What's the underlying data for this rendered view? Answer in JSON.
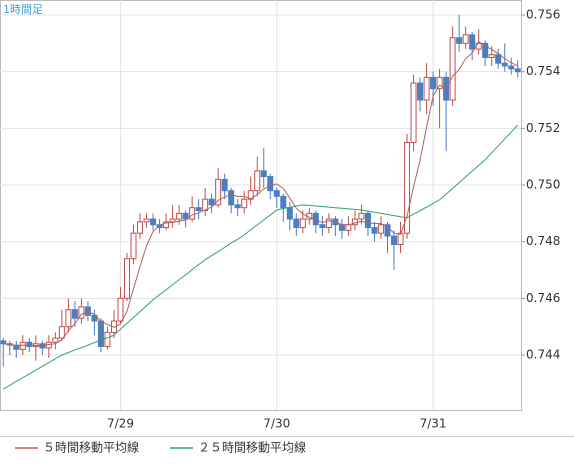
{
  "chart_data": {
    "type": "candlestick",
    "title": "1時間足",
    "categories": [
      null,
      null,
      null,
      null,
      null,
      null,
      null,
      null,
      null,
      null,
      null,
      null,
      null,
      null,
      null,
      null,
      null,
      null,
      "7/29",
      null,
      null,
      null,
      null,
      null,
      null,
      null,
      null,
      null,
      null,
      null,
      null,
      null,
      null,
      null,
      null,
      null,
      null,
      null,
      null,
      null,
      null,
      null,
      "7/30",
      null,
      null,
      null,
      null,
      null,
      null,
      null,
      null,
      null,
      null,
      null,
      null,
      null,
      null,
      null,
      null,
      null,
      null,
      null,
      null,
      null,
      null,
      null,
      "7/31",
      null,
      null,
      null,
      null,
      null,
      null,
      null,
      null,
      null,
      null,
      null,
      null,
      null
    ],
    "open": [
      0.7445,
      0.7444,
      0.74435,
      0.7442,
      0.74445,
      0.7443,
      0.7444,
      0.74425,
      0.74445,
      0.7446,
      0.745,
      0.7456,
      0.7453,
      0.7457,
      0.7454,
      0.7452,
      0.7443,
      0.7448,
      0.7452,
      0.746,
      0.7474,
      0.7483,
      0.7487,
      0.7488,
      0.7486,
      0.7485,
      0.7487,
      0.7488,
      0.749,
      0.7488,
      0.7492,
      0.7491,
      0.7495,
      0.7493,
      0.7502,
      0.7498,
      0.7493,
      0.7492,
      0.7495,
      0.7498,
      0.7505,
      0.7503,
      0.7498,
      0.7496,
      0.7492,
      0.7488,
      0.7485,
      0.7488,
      0.749,
      0.7486,
      0.7485,
      0.7488,
      0.7486,
      0.7484,
      0.7486,
      0.7488,
      0.749,
      0.7485,
      0.7483,
      0.7486,
      0.7482,
      0.7479,
      0.7483,
      0.7515,
      0.7536,
      0.753,
      0.7538,
      0.7534,
      0.7538,
      0.753,
      0.7552,
      0.755,
      0.7553,
      0.7548,
      0.755,
      0.7545,
      0.7546,
      0.7543,
      0.7542,
      0.7541
    ],
    "high": [
      0.7446,
      0.7445,
      0.7445,
      0.7447,
      0.7446,
      0.7447,
      0.7445,
      0.7447,
      0.7448,
      0.7456,
      0.746,
      0.7459,
      0.746,
      0.7459,
      0.7456,
      0.7453,
      0.745,
      0.7456,
      0.7464,
      0.7476,
      0.7486,
      0.749,
      0.749,
      0.749,
      0.7488,
      0.749,
      0.7493,
      0.7493,
      0.7491,
      0.7496,
      0.7495,
      0.7499,
      0.7497,
      0.7506,
      0.7504,
      0.7499,
      0.7495,
      0.7498,
      0.7503,
      0.751,
      0.7513,
      0.7504,
      0.7499,
      0.7497,
      0.7494,
      0.749,
      0.7491,
      0.7492,
      0.7491,
      0.7489,
      0.749,
      0.7489,
      0.7488,
      0.7489,
      0.7491,
      0.7493,
      0.7491,
      0.7487,
      0.7489,
      0.7487,
      0.7484,
      0.7487,
      0.7518,
      0.7539,
      0.7538,
      0.7543,
      0.754,
      0.7541,
      0.754,
      0.7556,
      0.756,
      0.7556,
      0.7554,
      0.7555,
      0.7551,
      0.7549,
      0.7548,
      0.755,
      0.7545,
      0.7544
    ],
    "low": [
      0.7436,
      0.744,
      0.7439,
      0.744,
      0.7441,
      0.7438,
      0.744,
      0.7439,
      0.7442,
      0.7445,
      0.7448,
      0.745,
      0.7451,
      0.7452,
      0.7447,
      0.7441,
      0.7442,
      0.7446,
      0.7451,
      0.7459,
      0.7472,
      0.7481,
      0.7485,
      0.7484,
      0.7483,
      0.7484,
      0.7485,
      0.7486,
      0.7485,
      0.7487,
      0.7488,
      0.7489,
      0.749,
      0.7492,
      0.7495,
      0.749,
      0.7489,
      0.749,
      0.7493,
      0.7496,
      0.7499,
      0.7495,
      0.7492,
      0.7487,
      0.7484,
      0.7482,
      0.7483,
      0.7486,
      0.7483,
      0.7482,
      0.7483,
      0.7482,
      0.7481,
      0.7482,
      0.7484,
      0.7486,
      0.7482,
      0.748,
      0.7481,
      0.7476,
      0.747,
      0.7476,
      0.7481,
      0.7512,
      0.7526,
      0.7525,
      0.7528,
      0.752,
      0.7512,
      0.7528,
      0.7547,
      0.7548,
      0.7544,
      0.7546,
      0.7542,
      0.7542,
      0.7541,
      0.754,
      0.7539,
      0.7538
    ],
    "close": [
      0.7444,
      0.74435,
      0.7442,
      0.74445,
      0.7443,
      0.7444,
      0.74425,
      0.74445,
      0.7446,
      0.745,
      0.7456,
      0.7453,
      0.7457,
      0.7454,
      0.7452,
      0.7443,
      0.7448,
      0.7452,
      0.746,
      0.7474,
      0.7483,
      0.7487,
      0.7488,
      0.7486,
      0.7485,
      0.7487,
      0.7488,
      0.749,
      0.7488,
      0.7492,
      0.7491,
      0.7495,
      0.7493,
      0.7502,
      0.7498,
      0.7493,
      0.7492,
      0.7495,
      0.7498,
      0.7505,
      0.7503,
      0.7498,
      0.7496,
      0.7492,
      0.7488,
      0.7485,
      0.7488,
      0.749,
      0.7486,
      0.7485,
      0.7488,
      0.7486,
      0.7484,
      0.7486,
      0.7488,
      0.749,
      0.7485,
      0.7483,
      0.7486,
      0.7482,
      0.7479,
      0.7483,
      0.7515,
      0.7536,
      0.753,
      0.7538,
      0.7534,
      0.7538,
      0.753,
      0.7552,
      0.755,
      0.7553,
      0.7548,
      0.755,
      0.7545,
      0.7546,
      0.7543,
      0.7542,
      0.7541,
      0.754
    ],
    "up_color": "#c0504d",
    "down_color": "#4a7fc1",
    "series": [
      {
        "name": "５時間移動平均線",
        "color": "#b5625e",
        "values": [
          0.7444,
          0.74438,
          0.74432,
          0.74435,
          0.74434,
          0.74434,
          0.74432,
          0.74437,
          0.7444,
          0.74454,
          0.74486,
          0.7451,
          0.74544,
          0.74552,
          0.74544,
          0.74518,
          0.74508,
          0.74498,
          0.7451,
          0.74554,
          0.74634,
          0.74712,
          0.74786,
          0.74836,
          0.74858,
          0.74866,
          0.74868,
          0.74872,
          0.74876,
          0.74894,
          0.74902,
          0.74912,
          0.74922,
          0.74946,
          0.74958,
          0.74966,
          0.7496,
          0.7496,
          0.74952,
          0.74966,
          0.74986,
          0.74998,
          0.75004,
          0.74988,
          0.74954,
          0.74918,
          0.74898,
          0.74886,
          0.74876,
          0.74868,
          0.74874,
          0.7487,
          0.7486,
          0.7486,
          0.74866,
          0.74872,
          0.74866,
          0.74864,
          0.74864,
          0.74852,
          0.7483,
          0.74826,
          0.7489,
          0.74994,
          0.75088,
          0.75204,
          0.75314,
          0.75352,
          0.7534,
          0.75384,
          0.75408,
          0.75446,
          0.75466,
          0.75506,
          0.75492,
          0.75478,
          0.75464,
          0.75446,
          0.75432,
          0.7542
        ]
      },
      {
        "name": "２５時間移動平均線",
        "color": "#2fa36b",
        "values": [
          0.7428,
          0.74293,
          0.74307,
          0.7432,
          0.74333,
          0.74347,
          0.7436,
          0.74373,
          0.74387,
          0.744,
          0.74409,
          0.74418,
          0.74426,
          0.74435,
          0.74444,
          0.74453,
          0.74461,
          0.7447,
          0.74491,
          0.74512,
          0.74533,
          0.74553,
          0.74574,
          0.74595,
          0.74613,
          0.7463,
          0.74648,
          0.74666,
          0.74683,
          0.74701,
          0.74719,
          0.74736,
          0.74751,
          0.74765,
          0.7478,
          0.74795,
          0.74809,
          0.74824,
          0.74842,
          0.74859,
          0.74877,
          0.74894,
          0.74912,
          0.74917,
          0.74921,
          0.74926,
          0.7493,
          0.74928,
          0.74926,
          0.74924,
          0.74922,
          0.7492,
          0.74918,
          0.74916,
          0.74914,
          0.74912,
          0.74908,
          0.74904,
          0.749,
          0.74896,
          0.74892,
          0.74888,
          0.74884,
          0.74897,
          0.7491,
          0.74922,
          0.74935,
          0.74948,
          0.74968,
          0.74988,
          0.75008,
          0.75029,
          0.75049,
          0.75069,
          0.75089,
          0.75114,
          0.75138,
          0.75163,
          0.75187,
          0.75212
        ]
      }
    ],
    "ylim": [
      0.74206,
      0.75653
    ],
    "yticks": [
      {
        "value": 0.744,
        "label": "0.744"
      },
      {
        "value": 0.746,
        "label": "0.746"
      },
      {
        "value": 0.748,
        "label": "0.748"
      },
      {
        "value": 0.75,
        "label": "0.750"
      },
      {
        "value": 0.752,
        "label": "0.752"
      },
      {
        "value": 0.754,
        "label": "0.754"
      },
      {
        "value": 0.756,
        "label": "0.756"
      }
    ],
    "grid": true
  }
}
